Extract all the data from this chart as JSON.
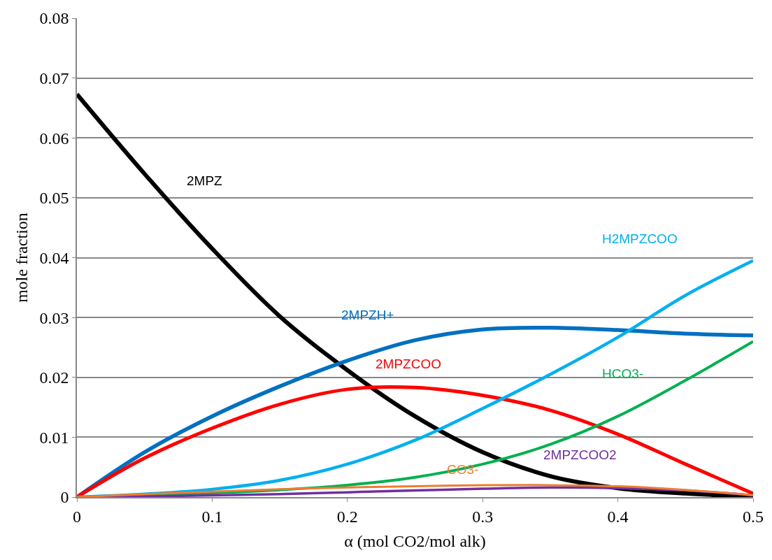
{
  "chart_data": {
    "type": "line",
    "xlabel": "α (mol CO2/mol alk)",
    "ylabel": "mole fraction",
    "x": [
      0,
      0.05,
      0.1,
      0.15,
      0.2,
      0.25,
      0.3,
      0.35,
      0.4,
      0.45,
      0.5
    ],
    "series": [
      {
        "name": "2MPZ",
        "color": "#000000",
        "values": [
          0.0673,
          0.054,
          0.0415,
          0.0302,
          0.0212,
          0.0135,
          0.0075,
          0.0035,
          0.0015,
          0.0006,
          0.0001
        ]
      },
      {
        "name": "2MPZH+",
        "color": "#0070c0",
        "values": [
          0,
          0.0075,
          0.0135,
          0.0185,
          0.0228,
          0.0262,
          0.028,
          0.0283,
          0.0279,
          0.0273,
          0.027
        ]
      },
      {
        "name": "2MPZCOO",
        "color": "#ff0000",
        "values": [
          0,
          0.0065,
          0.0115,
          0.0155,
          0.018,
          0.0183,
          0.017,
          0.0145,
          0.0105,
          0.0055,
          0.0006
        ]
      },
      {
        "name": "H2MPZCOO",
        "color": "#00b0f0",
        "values": [
          0,
          0.0005,
          0.0013,
          0.0028,
          0.0055,
          0.0095,
          0.0148,
          0.0205,
          0.0267,
          0.0337,
          0.0395
        ]
      },
      {
        "name": "HCO3-",
        "color": "#00b050",
        "values": [
          0,
          0.0003,
          0.0007,
          0.0012,
          0.002,
          0.0033,
          0.0055,
          0.0088,
          0.0135,
          0.0195,
          0.026
        ]
      },
      {
        "name": "2MPZCOO2",
        "color": "#7030a0",
        "values": [
          0,
          0.0001,
          0.0003,
          0.0005,
          0.0008,
          0.0011,
          0.0014,
          0.0016,
          0.0015,
          0.0011,
          0.0003
        ]
      },
      {
        "name": "CO3-",
        "color": "#ed7d31",
        "values": [
          0,
          0.0005,
          0.0009,
          0.0013,
          0.0016,
          0.0018,
          0.002,
          0.002,
          0.0018,
          0.0012,
          0.0003
        ]
      }
    ],
    "xlim": [
      0,
      0.5
    ],
    "xticks": [
      0,
      0.1,
      0.2,
      0.3,
      0.4,
      0.5
    ],
    "ylim": [
      0,
      0.08
    ],
    "yticks": [
      0,
      0.01,
      0.02,
      0.03,
      0.04,
      0.05,
      0.06,
      0.07,
      0.08
    ],
    "grid": "y",
    "legend": false,
    "marker": "none",
    "line_style": "solid"
  }
}
